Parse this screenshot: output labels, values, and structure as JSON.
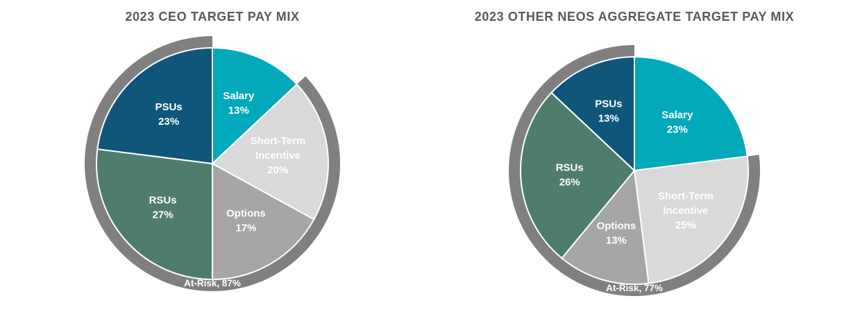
{
  "chart_data": [
    {
      "type": "pie",
      "title": "2023 CEO TARGET PAY MIX",
      "slices": [
        {
          "label": "Salary",
          "value": 13,
          "value_label": "13%",
          "color": "#02A9BA"
        },
        {
          "label": "Short-Term Incentive",
          "value": 20,
          "value_label": "20%",
          "color": "#D9D9D9"
        },
        {
          "label": "Options",
          "value": 17,
          "value_label": "17%",
          "color": "#A6A6A6"
        },
        {
          "label": "RSUs",
          "value": 27,
          "value_label": "27%",
          "color": "#4E7D6D"
        },
        {
          "label": "PSUs",
          "value": 23,
          "value_label": "23%",
          "color": "#10567B"
        }
      ],
      "at_risk": {
        "label": "At-Risk, 87%",
        "value": 87
      },
      "ring_color": "#808080"
    },
    {
      "type": "pie",
      "title": "2023 OTHER NEOS AGGREGATE TARGET PAY MIX",
      "slices": [
        {
          "label": "Salary",
          "value": 23,
          "value_label": "23%",
          "color": "#02A9BA"
        },
        {
          "label": "Short-Term Incentive",
          "value": 25,
          "value_label": "25%",
          "color": "#D9D9D9"
        },
        {
          "label": "Options",
          "value": 13,
          "value_label": "13%",
          "color": "#A6A6A6"
        },
        {
          "label": "RSUs",
          "value": 26,
          "value_label": "26%",
          "color": "#4E7D6D"
        },
        {
          "label": "PSUs",
          "value": 13,
          "value_label": "13%",
          "color": "#10567B"
        }
      ],
      "at_risk": {
        "label": "At-Risk, 77%",
        "value": 77
      },
      "ring_color": "#808080"
    }
  ]
}
